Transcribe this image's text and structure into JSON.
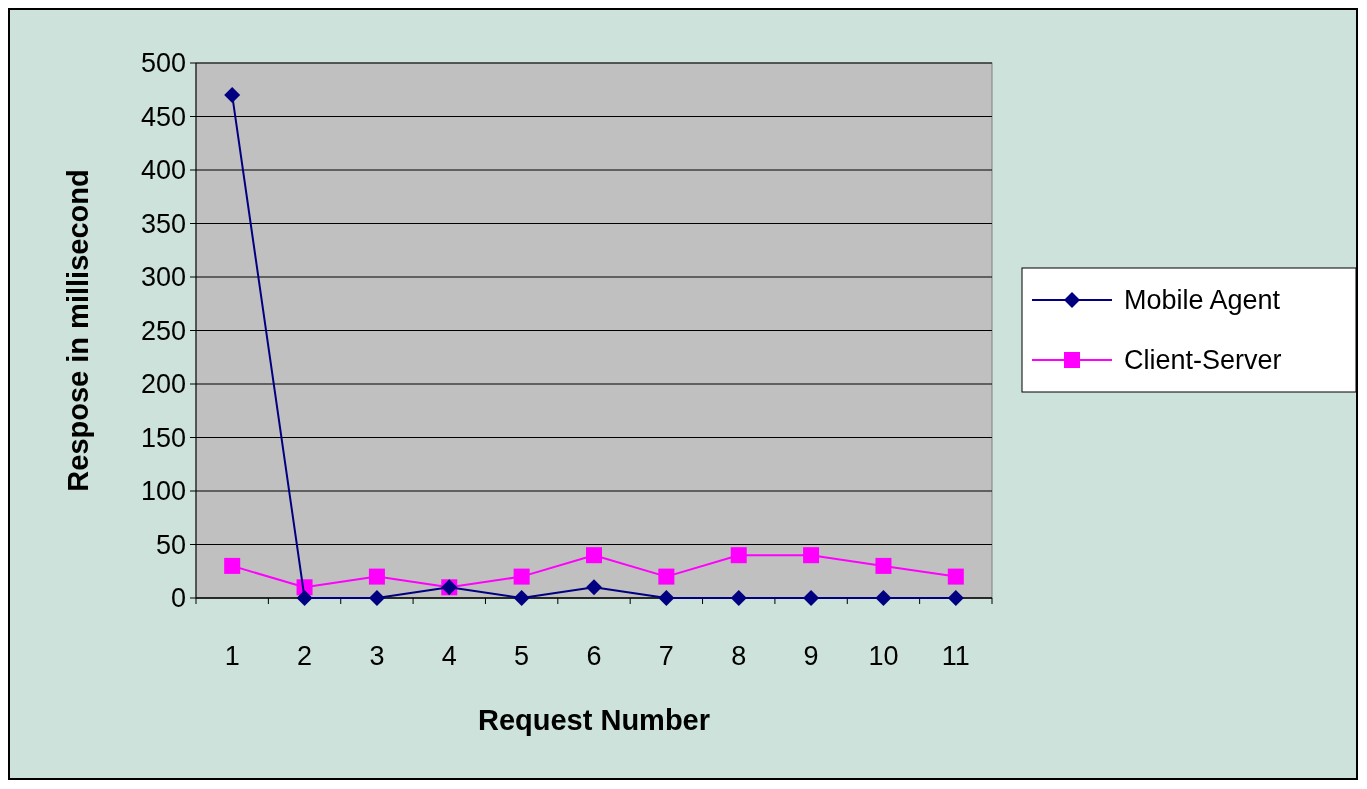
{
  "chart_data": {
    "type": "line",
    "xlabel": "Request Number",
    "ylabel": "Respose in millisecond",
    "categories": [
      "1",
      "2",
      "3",
      "4",
      "5",
      "6",
      "7",
      "8",
      "9",
      "10",
      "11"
    ],
    "series": [
      {
        "name": "Mobile Agent",
        "color": "#000080",
        "marker": "diamond",
        "values": [
          470,
          0,
          0,
          10,
          0,
          10,
          0,
          0,
          0,
          0,
          0
        ]
      },
      {
        "name": "Client-Server",
        "color": "#ff00ff",
        "marker": "square",
        "values": [
          30,
          10,
          20,
          10,
          20,
          40,
          20,
          40,
          40,
          30,
          20
        ]
      }
    ],
    "ylim": [
      0,
      500
    ],
    "yticks": [
      0,
      50,
      100,
      150,
      200,
      250,
      300,
      350,
      400,
      450,
      500
    ],
    "grid": "y",
    "legend": "right"
  }
}
